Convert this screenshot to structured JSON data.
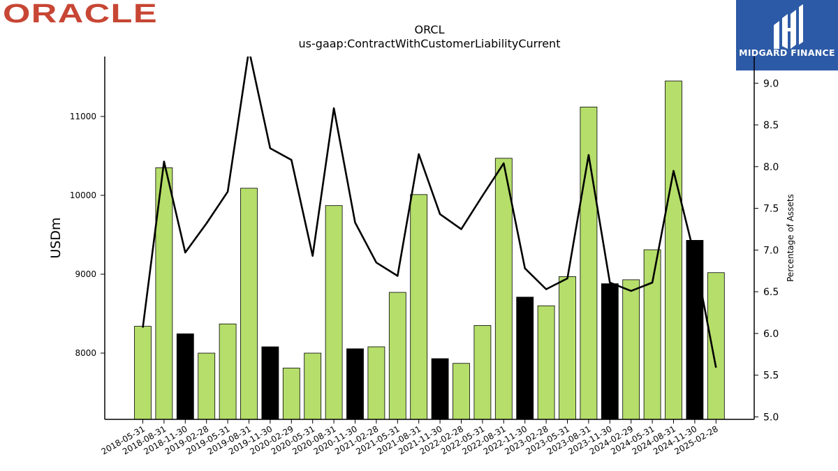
{
  "logos": {
    "oracle": "ORACLE",
    "midgard": "MIDGARD FINANCE"
  },
  "chart_data": {
    "type": "bar",
    "title": "ORCL",
    "subtitle": "us-gaap:ContractWithCustomerLiabilityCurrent",
    "ylabel": "USDm",
    "y2label": "Percentage of Assets",
    "ylim": [
      7160,
      11760
    ],
    "y2lim": [
      4.97,
      9.32
    ],
    "yticks": [
      8000,
      9000,
      10000,
      11000
    ],
    "y2ticks": [
      5.0,
      5.5,
      6.0,
      6.5,
      7.0,
      7.5,
      8.0,
      8.5,
      9.0
    ],
    "y2tick_labels": [
      "5.0",
      "5.5",
      "6.0",
      "6.5",
      "7.0",
      "7.5",
      "8.0",
      "8.5",
      "9.0"
    ],
    "categories": [
      "2018-05-31",
      "2018-08-31",
      "2018-11-30",
      "2019-02-28",
      "2019-05-31",
      "2019-08-31",
      "2019-11-30",
      "2020-02-29",
      "2020-05-31",
      "2020-08-31",
      "2020-11-30",
      "2021-02-28",
      "2021-05-31",
      "2021-08-31",
      "2021-11-30",
      "2022-02-28",
      "2022-05-31",
      "2022-08-31",
      "2022-11-30",
      "2023-02-28",
      "2023-05-31",
      "2023-08-31",
      "2023-11-30",
      "2024-02-29",
      "2024-05-31",
      "2024-08-31",
      "2024-11-30",
      "2025-02-28"
    ],
    "series": [
      {
        "type": "bar",
        "values": [
          8340,
          10350,
          8245,
          8000,
          8370,
          10090,
          8080,
          7810,
          8000,
          9870,
          8055,
          8080,
          8770,
          10010,
          7930,
          7870,
          8350,
          10470,
          8710,
          8600,
          8970,
          11120,
          8880,
          8930,
          9310,
          11450,
          9430,
          9020
        ],
        "colors": [
          "#b5de6a",
          "#b5de6a",
          "#000000",
          "#b5de6a",
          "#b5de6a",
          "#b5de6a",
          "#000000",
          "#b5de6a",
          "#b5de6a",
          "#b5de6a",
          "#000000",
          "#b5de6a",
          "#b5de6a",
          "#b5de6a",
          "#000000",
          "#b5de6a",
          "#b5de6a",
          "#b5de6a",
          "#000000",
          "#b5de6a",
          "#b5de6a",
          "#b5de6a",
          "#000000",
          "#b5de6a",
          "#b5de6a",
          "#b5de6a",
          "#000000",
          "#b5de6a"
        ]
      },
      {
        "type": "line",
        "axis": "right",
        "color": "#000000",
        "values": [
          6.07,
          8.06,
          6.97,
          7.32,
          7.7,
          9.4,
          8.22,
          8.08,
          6.93,
          8.7,
          7.33,
          6.85,
          6.69,
          8.15,
          7.43,
          7.25,
          7.65,
          8.04,
          6.78,
          6.53,
          6.66,
          8.14,
          6.61,
          6.51,
          6.61,
          7.95,
          6.92,
          5.59
        ]
      }
    ],
    "legend": "none",
    "grid": false
  }
}
